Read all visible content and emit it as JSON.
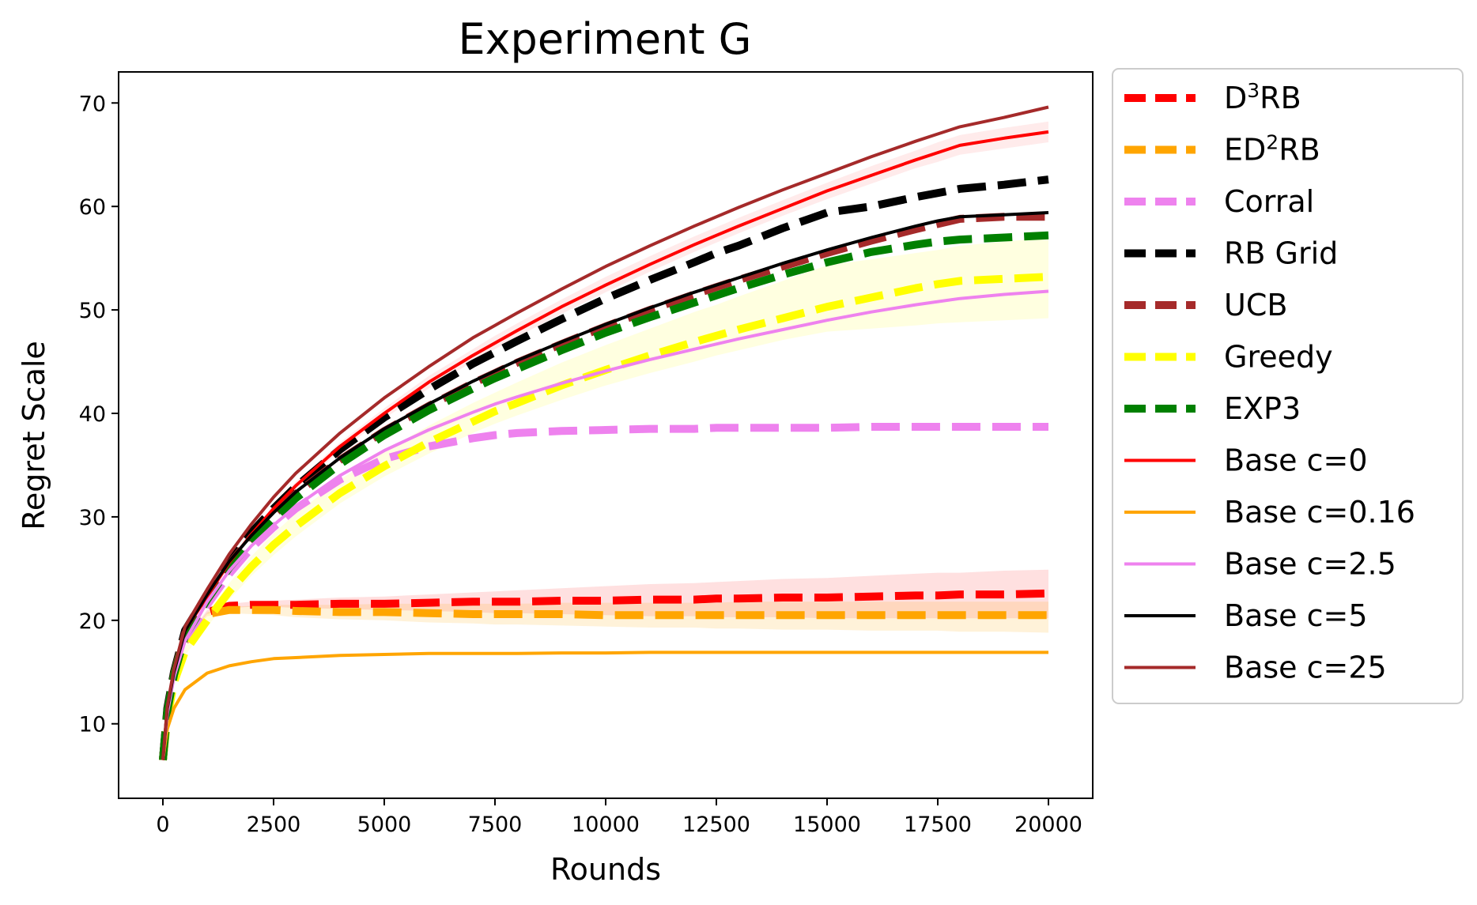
{
  "chart_data": {
    "type": "line",
    "title": "Experiment G",
    "xlabel": "Rounds",
    "ylabel": "Regret Scale",
    "xlim": [
      -1000,
      21000
    ],
    "ylim": [
      2.8,
      73
    ],
    "xticks": [
      0,
      2500,
      5000,
      7500,
      10000,
      12500,
      15000,
      17500,
      20000
    ],
    "yticks": [
      10,
      20,
      30,
      40,
      50,
      60,
      70
    ],
    "xtick_labels": [
      "0",
      "2500",
      "5000",
      "7500",
      "10000",
      "12500",
      "15000",
      "17500",
      "20000"
    ],
    "ytick_labels": [
      "10",
      "20",
      "30",
      "40",
      "50",
      "60",
      "70"
    ],
    "grid": false,
    "legend_position": "outside-right",
    "x": [
      0,
      100,
      250,
      500,
      1000,
      1500,
      2000,
      2500,
      3000,
      4000,
      5000,
      6000,
      7000,
      7500,
      8000,
      9000,
      10000,
      11000,
      12000,
      12500,
      13000,
      14000,
      15000,
      16000,
      17000,
      17500,
      18000,
      19000,
      20000
    ],
    "series": [
      {
        "name": "D",
        "sup": "3",
        "suffix": "RB",
        "color": "#ff0000",
        "style": "dashed",
        "width": 10,
        "values": [
          6.5,
          11.0,
          14.5,
          18.0,
          20.8,
          21.4,
          21.5,
          21.5,
          21.5,
          21.6,
          21.6,
          21.7,
          21.8,
          21.8,
          21.8,
          21.9,
          21.9,
          22.0,
          22.0,
          22.1,
          22.1,
          22.2,
          22.2,
          22.3,
          22.4,
          22.4,
          22.5,
          22.5,
          22.6
        ],
        "band": {
          "color": "#ff0000",
          "opacity": 0.12,
          "lower": [
            6.5,
            11.0,
            14.5,
            18.0,
            20.6,
            21.2,
            21.3,
            21.3,
            21.2,
            21.1,
            21.0,
            20.9,
            20.8,
            20.7,
            20.7,
            20.6,
            20.5,
            20.4,
            20.4,
            20.3,
            20.3,
            20.3,
            20.2,
            20.2,
            20.2,
            20.2,
            20.2,
            20.2,
            20.2
          ],
          "upper": [
            6.5,
            11.0,
            14.5,
            18.0,
            21.0,
            21.6,
            21.8,
            21.9,
            22.0,
            22.2,
            22.3,
            22.5,
            22.7,
            22.8,
            22.9,
            23.1,
            23.3,
            23.5,
            23.6,
            23.7,
            23.8,
            24.0,
            24.1,
            24.3,
            24.5,
            24.6,
            24.6,
            24.8,
            24.9
          ]
        }
      },
      {
        "name": "ED",
        "sup": "2",
        "suffix": "RB",
        "color": "#ffa500",
        "style": "dashed",
        "width": 10,
        "values": [
          6.5,
          11.0,
          14.5,
          18.0,
          20.6,
          21.0,
          21.0,
          21.0,
          20.9,
          20.8,
          20.8,
          20.7,
          20.6,
          20.6,
          20.6,
          20.6,
          20.5,
          20.5,
          20.5,
          20.5,
          20.5,
          20.5,
          20.5,
          20.5,
          20.5,
          20.5,
          20.5,
          20.5,
          20.5
        ],
        "band": {
          "color": "#ffa500",
          "opacity": 0.15,
          "lower": [
            6.5,
            11.0,
            14.5,
            18.0,
            20.4,
            20.7,
            20.6,
            20.5,
            20.3,
            20.1,
            20.0,
            19.8,
            19.7,
            19.6,
            19.6,
            19.5,
            19.4,
            19.3,
            19.3,
            19.2,
            19.2,
            19.1,
            19.1,
            19.0,
            19.0,
            19.0,
            18.9,
            18.9,
            18.8
          ],
          "upper": [
            6.5,
            11.0,
            14.5,
            18.0,
            20.8,
            21.3,
            21.4,
            21.5,
            21.5,
            21.5,
            21.6,
            21.6,
            21.6,
            21.6,
            21.6,
            21.7,
            21.7,
            21.7,
            21.7,
            21.7,
            21.8,
            21.8,
            21.8,
            21.8,
            21.8,
            21.8,
            21.8,
            21.8,
            21.8
          ]
        }
      },
      {
        "name": "Corral",
        "color": "#ee82ee",
        "style": "dashed",
        "width": 10,
        "values": [
          6.5,
          11.0,
          14.5,
          18.0,
          21.5,
          24.5,
          27.0,
          29.0,
          30.8,
          33.6,
          35.6,
          36.8,
          37.6,
          37.9,
          38.1,
          38.3,
          38.4,
          38.5,
          38.5,
          38.6,
          38.6,
          38.6,
          38.6,
          38.7,
          38.7,
          38.7,
          38.7,
          38.7,
          38.7
        ]
      },
      {
        "name": "RB Grid",
        "color": "#000000",
        "style": "dashed",
        "width": 10,
        "values": [
          6.5,
          11.5,
          15.0,
          19.0,
          22.5,
          25.8,
          28.5,
          30.8,
          32.9,
          36.5,
          39.6,
          42.3,
          44.8,
          45.9,
          47.0,
          49.1,
          51.1,
          52.9,
          54.6,
          55.5,
          56.2,
          57.9,
          59.4,
          60.0,
          60.9,
          61.3,
          61.7,
          62.1,
          62.6
        ]
      },
      {
        "name": "UCB",
        "color": "#a52a2a",
        "style": "dashed",
        "width": 10,
        "values": [
          6.5,
          11.2,
          14.8,
          18.7,
          22.2,
          25.4,
          28.0,
          30.2,
          32.2,
          35.5,
          38.3,
          40.7,
          42.9,
          43.9,
          44.9,
          46.7,
          48.4,
          50.0,
          51.5,
          52.2,
          52.9,
          54.2,
          55.5,
          56.7,
          57.8,
          58.3,
          58.8,
          59.0,
          59.0
        ]
      },
      {
        "name": "Greedy",
        "color": "#ffff00",
        "style": "dashed",
        "width": 10,
        "values": [
          6.5,
          10.5,
          14.0,
          17.0,
          20.0,
          22.8,
          25.2,
          27.3,
          29.1,
          32.3,
          34.9,
          37.2,
          39.2,
          40.2,
          41.0,
          42.7,
          44.2,
          45.6,
          46.9,
          47.5,
          48.1,
          49.2,
          50.3,
          51.2,
          52.1,
          52.5,
          52.8,
          53.0,
          53.2
        ],
        "band": {
          "color": "#ffff00",
          "opacity": 0.12,
          "lower": [
            6.5,
            10.5,
            13.8,
            16.6,
            19.4,
            22.0,
            24.3,
            26.3,
            28.1,
            31.3,
            33.9,
            36.1,
            38.1,
            39.0,
            39.8,
            41.3,
            42.7,
            43.9,
            45.0,
            45.6,
            46.1,
            47.1,
            47.9,
            48.2,
            48.5,
            48.7,
            48.8,
            49.0,
            49.2
          ],
          "upper": [
            6.5,
            10.5,
            14.2,
            17.4,
            20.6,
            23.6,
            26.2,
            28.4,
            30.3,
            33.6,
            36.3,
            38.8,
            41.0,
            42.0,
            43.0,
            44.9,
            46.6,
            48.2,
            49.8,
            50.5,
            51.3,
            52.8,
            54.3,
            54.9,
            55.5,
            55.8,
            56.2,
            56.6,
            57.0
          ]
        }
      },
      {
        "name": "EXP3",
        "color": "#008000",
        "style": "dashed",
        "width": 10,
        "values": [
          6.5,
          11.2,
          14.7,
          18.5,
          22.0,
          25.1,
          27.6,
          29.8,
          31.8,
          35.1,
          37.9,
          40.3,
          42.4,
          43.4,
          44.3,
          46.1,
          47.8,
          49.3,
          50.7,
          51.4,
          52.1,
          53.4,
          54.6,
          55.6,
          56.3,
          56.6,
          56.8,
          57.0,
          57.2
        ]
      },
      {
        "name": "Base c=0",
        "color": "#ff0000",
        "style": "solid",
        "width": 4,
        "values": [
          6.5,
          11.5,
          15.0,
          19.0,
          22.3,
          25.6,
          28.3,
          30.8,
          33.0,
          36.8,
          40.0,
          43.0,
          45.6,
          46.8,
          48.0,
          50.3,
          52.4,
          54.4,
          56.3,
          57.2,
          58.1,
          59.8,
          61.5,
          63.0,
          64.5,
          65.2,
          65.9,
          66.6,
          67.2
        ],
        "band": {
          "color": "#ff0000",
          "opacity": 0.08,
          "lower": [
            6.5,
            11.5,
            15.0,
            19.0,
            22.2,
            25.4,
            28.0,
            30.5,
            32.6,
            36.4,
            39.5,
            42.4,
            45.0,
            46.2,
            47.4,
            49.6,
            51.7,
            53.7,
            55.6,
            56.5,
            57.4,
            59.1,
            60.7,
            62.2,
            63.7,
            64.3,
            65.0,
            65.6,
            66.2
          ],
          "upper": [
            6.5,
            11.5,
            15.0,
            19.0,
            22.4,
            25.8,
            28.6,
            31.1,
            33.4,
            37.2,
            40.5,
            43.6,
            46.2,
            47.5,
            48.7,
            51.0,
            53.2,
            55.2,
            57.1,
            58.0,
            58.9,
            60.6,
            62.3,
            63.9,
            65.4,
            66.2,
            66.9,
            67.6,
            68.2
          ]
        }
      },
      {
        "name": "Base c=0.16",
        "color": "#ffa500",
        "style": "solid",
        "width": 4,
        "values": [
          6.5,
          9.5,
          11.5,
          13.3,
          14.9,
          15.6,
          16.0,
          16.3,
          16.4,
          16.6,
          16.7,
          16.8,
          16.8,
          16.8,
          16.8,
          16.85,
          16.85,
          16.9,
          16.9,
          16.9,
          16.9,
          16.9,
          16.9,
          16.9,
          16.9,
          16.9,
          16.9,
          16.9,
          16.9
        ]
      },
      {
        "name": "Base c=2.5",
        "color": "#ee82ee",
        "style": "solid",
        "width": 4,
        "values": [
          6.5,
          11.0,
          14.5,
          18.0,
          21.8,
          24.8,
          27.2,
          29.2,
          31.0,
          34.0,
          36.4,
          38.4,
          40.1,
          40.9,
          41.6,
          42.9,
          44.1,
          45.2,
          46.2,
          46.7,
          47.2,
          48.1,
          49.0,
          49.8,
          50.5,
          50.8,
          51.1,
          51.5,
          51.8
        ]
      },
      {
        "name": "Base c=5",
        "color": "#000000",
        "style": "solid",
        "width": 4,
        "values": [
          6.5,
          11.5,
          15.0,
          19.0,
          22.5,
          25.7,
          28.2,
          30.4,
          32.4,
          35.7,
          38.5,
          40.9,
          43.1,
          44.1,
          45.1,
          46.9,
          48.6,
          50.2,
          51.7,
          52.4,
          53.1,
          54.5,
          55.8,
          57.0,
          58.1,
          58.6,
          59.0,
          59.2,
          59.4
        ]
      },
      {
        "name": "Base c=25",
        "color": "#a52a2a",
        "style": "solid",
        "width": 4,
        "values": [
          6.5,
          11.7,
          15.3,
          19.4,
          23.0,
          26.4,
          29.3,
          31.9,
          34.2,
          38.1,
          41.5,
          44.5,
          47.3,
          48.5,
          49.7,
          52.0,
          54.2,
          56.2,
          58.1,
          59.0,
          59.9,
          61.6,
          63.2,
          64.8,
          66.3,
          67.0,
          67.7,
          68.6,
          69.6
        ]
      }
    ]
  }
}
